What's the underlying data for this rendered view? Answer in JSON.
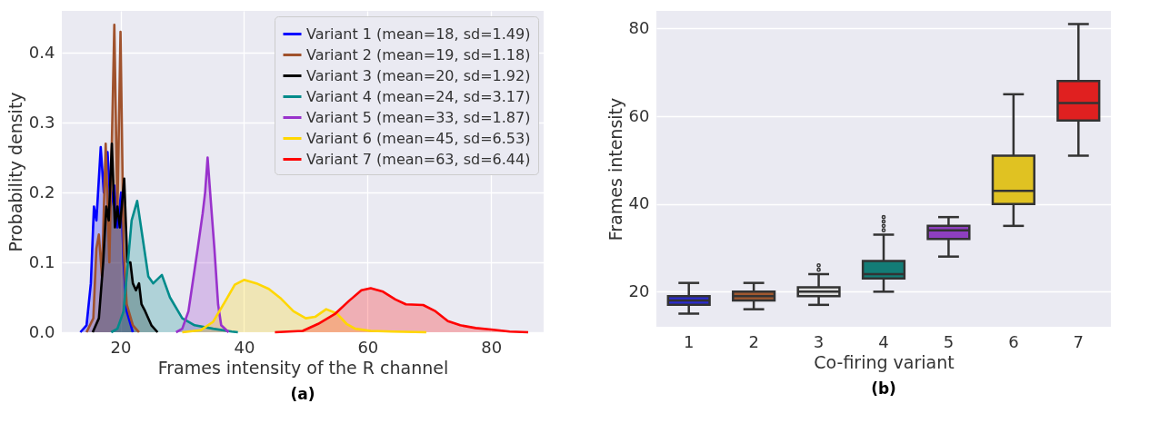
{
  "chart_data": [
    {
      "type": "area",
      "xlabel": "Frames intensity of the R channel",
      "ylabel": "Probability density",
      "xlim": [
        10.5,
        88.5
      ],
      "ylim": [
        0,
        0.46
      ],
      "xticks": [
        20,
        40,
        60,
        80
      ],
      "yticks": [
        {
          "value": 0,
          "label": "0.0"
        },
        0.1,
        0.2,
        0.3,
        0.4
      ],
      "grid": true,
      "legend": "top right",
      "annotations": [
        "(a)"
      ],
      "series": [
        {
          "name": "Variant 1 (mean=18, sd=1.49)",
          "color": "#0000ff",
          "x": [
            13.5,
            14.5,
            15.2,
            15.7,
            16.1,
            16.8,
            17.3,
            17.9,
            18.4,
            19,
            19.5,
            20.1,
            20.5,
            21,
            22
          ],
          "values": [
            0,
            0.01,
            0.07,
            0.18,
            0.16,
            0.265,
            0.2,
            0.258,
            0.18,
            0.21,
            0.15,
            0.2,
            0.1,
            0.03,
            0
          ]
        },
        {
          "name": "Variant 2 (mean=19, sd=1.18)",
          "color": "#a0522d",
          "x": [
            14.5,
            15.6,
            16.1,
            16.5,
            17,
            17.6,
            18.2,
            19,
            19.5,
            20,
            20.5,
            21,
            22,
            23
          ],
          "values": [
            0,
            0.02,
            0.12,
            0.14,
            0.08,
            0.27,
            0.1,
            0.44,
            0.17,
            0.43,
            0.12,
            0.04,
            0.01,
            0
          ]
        },
        {
          "name": "Variant 3 (mean=20, sd=1.92)",
          "color": "#000000",
          "x": [
            15.5,
            16.5,
            17.2,
            17.7,
            18.1,
            18.6,
            19.1,
            19.5,
            19.9,
            20.6,
            21.1,
            21.6,
            22,
            22.5,
            23,
            23.4,
            24,
            25,
            26
          ],
          "values": [
            0,
            0.02,
            0.1,
            0.18,
            0.16,
            0.27,
            0.15,
            0.18,
            0.15,
            0.22,
            0.1,
            0.1,
            0.07,
            0.06,
            0.07,
            0.04,
            0.03,
            0.01,
            0
          ]
        },
        {
          "name": "Variant 4 (mean=24, sd=3.17)",
          "color": "#008b8b",
          "x": [
            18.5,
            19.5,
            20.5,
            21.2,
            21.8,
            22.7,
            23.5,
            24.5,
            25.3,
            26.7,
            28,
            30,
            32,
            35,
            38,
            39
          ],
          "values": [
            0,
            0.005,
            0.03,
            0.1,
            0.16,
            0.188,
            0.14,
            0.08,
            0.07,
            0.082,
            0.05,
            0.02,
            0.01,
            0.005,
            0.001,
            0
          ]
        },
        {
          "name": "Variant 5 (mean=33, sd=1.87)",
          "color": "#9932cc",
          "x": [
            29,
            30,
            31,
            32,
            32.5,
            33.3,
            33.7,
            34.1,
            34.6,
            35.2,
            35.8,
            36.3,
            37.5
          ],
          "values": [
            0,
            0.005,
            0.03,
            0.09,
            0.12,
            0.17,
            0.2,
            0.25,
            0.19,
            0.12,
            0.04,
            0.01,
            0
          ]
        },
        {
          "name": "Variant 6 (mean=45, sd=6.53)",
          "color": "#ffd700",
          "x": [
            30,
            33,
            35,
            37,
            38.5,
            40,
            42,
            44,
            46,
            48,
            50,
            51.5,
            53.3,
            55,
            56.6,
            58,
            60.5,
            64,
            69.5
          ],
          "values": [
            0,
            0.003,
            0.015,
            0.045,
            0.068,
            0.075,
            0.07,
            0.062,
            0.048,
            0.03,
            0.02,
            0.022,
            0.033,
            0.027,
            0.012,
            0.005,
            0.002,
            0.001,
            0
          ]
        },
        {
          "name": "Variant 7 (mean=63, sd=6.44)",
          "color": "#ff0000",
          "x": [
            45,
            49.5,
            52,
            54.7,
            57,
            59,
            60.5,
            62.5,
            64.5,
            66.2,
            69,
            71,
            73,
            75,
            77.5,
            80,
            83,
            86
          ],
          "values": [
            0,
            0.002,
            0.012,
            0.026,
            0.045,
            0.06,
            0.063,
            0.058,
            0.047,
            0.04,
            0.039,
            0.03,
            0.016,
            0.01,
            0.006,
            0.004,
            0.001,
            0
          ]
        }
      ]
    },
    {
      "type": "box",
      "xlabel": "Co-firing variant",
      "ylabel": "Frames intensity",
      "ylim": [
        12,
        84
      ],
      "yticks": [
        20,
        40,
        60,
        80
      ],
      "grid": "y",
      "annotations": [
        "(b)"
      ],
      "categories": [
        "1",
        "2",
        "3",
        "4",
        "5",
        "6",
        "7"
      ],
      "colors": [
        "#2b2bd0",
        "#a0582f",
        "#dcdcdc",
        "#137c76",
        "#8e3fbf",
        "#e0c222",
        "#e02020"
      ],
      "boxes": [
        {
          "low": 15,
          "q1": 17,
          "median": 18,
          "q3": 19,
          "high": 22
        },
        {
          "low": 16,
          "q1": 18,
          "median": 19,
          "q3": 20,
          "high": 22
        },
        {
          "low": 17,
          "q1": 19,
          "median": 20,
          "q3": 21,
          "high": 24,
          "outliers": [
            25,
            26
          ]
        },
        {
          "low": 20,
          "q1": 23,
          "median": 24,
          "q3": 27,
          "high": 33,
          "outliers": [
            34,
            35,
            36,
            37
          ]
        },
        {
          "low": 28,
          "q1": 32,
          "median": 34,
          "q3": 35,
          "high": 37
        },
        {
          "low": 35,
          "q1": 40,
          "median": 43,
          "q3": 51,
          "high": 65
        },
        {
          "low": 51,
          "q1": 59,
          "median": 63,
          "q3": 68,
          "high": 81
        }
      ]
    }
  ]
}
